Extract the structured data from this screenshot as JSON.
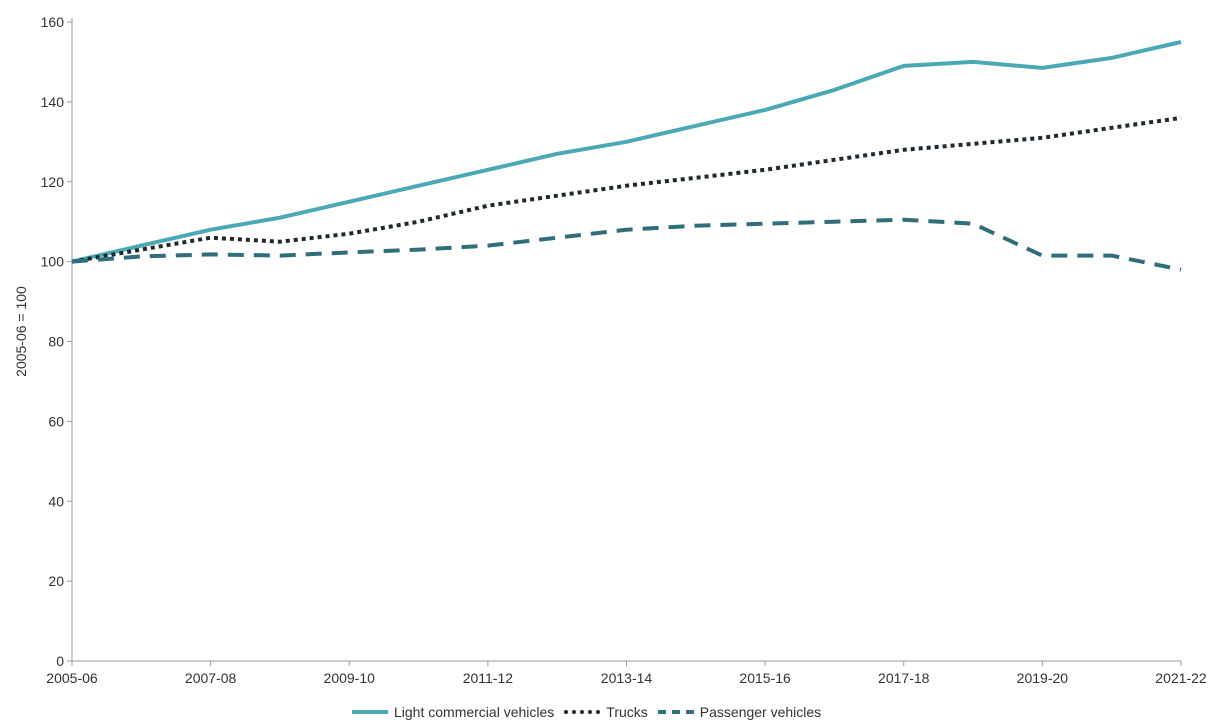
{
  "header": {
    "title_fragment": ""
  },
  "chart_data": {
    "type": "line",
    "title": "",
    "xlabel": "",
    "ylabel": "2005-06 = 100",
    "ylim": [
      0,
      160
    ],
    "yticks": [
      0,
      20,
      40,
      60,
      80,
      100,
      120,
      140,
      160
    ],
    "categories": [
      "2005-06",
      "2006-07",
      "2007-08",
      "2008-09",
      "2009-10",
      "2010-11",
      "2011-12",
      "2012-13",
      "2013-14",
      "2014-15",
      "2015-16",
      "2016-17",
      "2017-18",
      "2018-19",
      "2019-20",
      "2020-21",
      "2021-22"
    ],
    "xtick_labels": [
      "2005-06",
      "",
      "2007-08",
      "",
      "2009-10",
      "",
      "2011-12",
      "",
      "2013-14",
      "",
      "2015-16",
      "",
      "2017-18",
      "",
      "2019-20",
      "",
      "2021-22"
    ],
    "grid": false,
    "legend_position": "bottom",
    "series": [
      {
        "name": "Light commercial vehicles",
        "color": "#4aa9b5",
        "style": "solid",
        "values": [
          100,
          104,
          108,
          111,
          115,
          119,
          123,
          127,
          130,
          134,
          138,
          143,
          149,
          150,
          148.5,
          151,
          155
        ]
      },
      {
        "name": "Trucks",
        "color": "#1f2a30",
        "style": "dotted",
        "values": [
          100,
          103,
          106,
          105,
          107,
          110,
          114,
          116.5,
          119,
          121,
          123,
          125.5,
          128,
          129.5,
          131,
          133.5,
          136
        ]
      },
      {
        "name": "Passenger vehicles",
        "color": "#2f6e7a",
        "style": "dashed",
        "values": [
          100,
          101.3,
          101.8,
          101.5,
          102.3,
          103,
          104,
          106,
          108,
          109,
          109.5,
          110,
          110.5,
          109.5,
          101.5,
          101.5,
          98
        ]
      }
    ]
  }
}
